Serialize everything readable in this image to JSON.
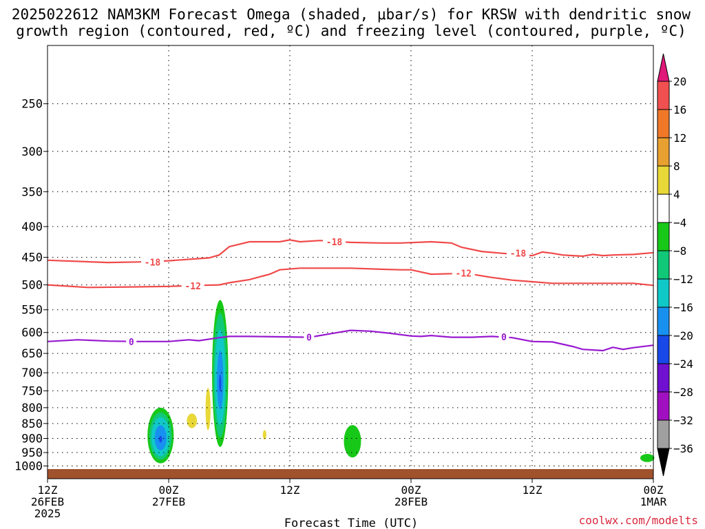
{
  "title_line1": "2025022612 NAM3KM Forecast Omega (shaded, μbar/s) for KRSW with dendritic snow",
  "title_line2": "growth region (contoured, red, ºC) and freezing level (contoured, purple, ºC)",
  "xlabel": "Forecast Time (UTC)",
  "credit": "coolwx.com/modelts",
  "chart_data": {
    "type": "heatmap",
    "x_hours_range": [
      0,
      60
    ],
    "y_axis": {
      "scale": "log",
      "range_hPa": [
        1050,
        200
      ],
      "ticks": [
        250,
        300,
        350,
        400,
        450,
        500,
        550,
        600,
        650,
        700,
        750,
        800,
        850,
        900,
        950,
        1000
      ]
    },
    "x_ticks": [
      {
        "hour": 0,
        "lines": [
          "12Z",
          "26FEB",
          "2025"
        ]
      },
      {
        "hour": 12,
        "lines": [
          "00Z",
          "27FEB"
        ]
      },
      {
        "hour": 24,
        "lines": [
          "12Z"
        ]
      },
      {
        "hour": 36,
        "lines": [
          "00Z",
          "28FEB"
        ]
      },
      {
        "hour": 48,
        "lines": [
          "12Z"
        ]
      },
      {
        "hour": 60,
        "lines": [
          "00Z",
          "1MAR"
        ]
      }
    ],
    "grid": true,
    "surface_color": "#a0522d",
    "colorbar": {
      "labels": [
        "20",
        "16",
        "12",
        "8",
        "4",
        "−4",
        "−8",
        "−12",
        "−16",
        "−20",
        "−24",
        "−28",
        "−32",
        "−36"
      ],
      "bands": [
        {
          "range": [
            16,
            20
          ],
          "color": "#f05050"
        },
        {
          "range": [
            12,
            16
          ],
          "color": "#f07828"
        },
        {
          "range": [
            8,
            12
          ],
          "color": "#e8a030"
        },
        {
          "range": [
            4,
            8
          ],
          "color": "#e8d838"
        },
        {
          "range": [
            -4,
            4
          ],
          "color": "#ffffff"
        },
        {
          "range": [
            -8,
            -4
          ],
          "color": "#18c818"
        },
        {
          "range": [
            -12,
            -8
          ],
          "color": "#10c878"
        },
        {
          "range": [
            -16,
            -12
          ],
          "color": "#10c8c8"
        },
        {
          "range": [
            -20,
            -16
          ],
          "color": "#1890f0"
        },
        {
          "range": [
            -24,
            -20
          ],
          "color": "#1848e8"
        },
        {
          "range": [
            -28,
            -24
          ],
          "color": "#7010d0"
        },
        {
          "range": [
            -32,
            -28
          ],
          "color": "#a010c0"
        },
        {
          "range": [
            -36,
            -32
          ],
          "color": "#a0a0a0"
        }
      ],
      "over_color": "#e01878",
      "under_color": "#000000"
    },
    "contours": [
      {
        "label": "-18",
        "color": "#f04848",
        "points": [
          [
            0,
            455
          ],
          [
            6,
            459
          ],
          [
            9,
            458
          ],
          [
            12,
            456
          ],
          [
            16,
            451
          ],
          [
            17,
            446
          ],
          [
            18,
            432
          ],
          [
            20,
            424
          ],
          [
            23,
            424
          ],
          [
            24,
            421
          ],
          [
            25,
            424
          ],
          [
            27,
            422
          ],
          [
            30,
            425
          ],
          [
            33,
            426
          ],
          [
            35,
            426
          ],
          [
            38,
            424
          ],
          [
            40,
            426
          ],
          [
            41,
            433
          ],
          [
            43,
            440
          ],
          [
            45,
            443
          ],
          [
            48,
            447
          ],
          [
            49,
            441
          ],
          [
            50,
            443
          ],
          [
            51,
            446
          ],
          [
            52,
            447
          ],
          [
            53,
            448
          ],
          [
            54,
            445
          ],
          [
            55,
            447
          ],
          [
            56,
            446
          ],
          [
            58,
            445
          ],
          [
            60,
            442
          ]
        ],
        "labels_at": [
          [
            10.4,
            458
          ],
          [
            28.4,
            424
          ],
          [
            46.6,
            443
          ]
        ]
      },
      {
        "label": "-12",
        "color": "#f04848",
        "points": [
          [
            0,
            500
          ],
          [
            4,
            505
          ],
          [
            8,
            504
          ],
          [
            12,
            503
          ],
          [
            15,
            501
          ],
          [
            17,
            500
          ],
          [
            18,
            496
          ],
          [
            20,
            490
          ],
          [
            22,
            480
          ],
          [
            23,
            472
          ],
          [
            25,
            469
          ],
          [
            27,
            469
          ],
          [
            30,
            469
          ],
          [
            33,
            471
          ],
          [
            35,
            472
          ],
          [
            36,
            472
          ],
          [
            37,
            476
          ],
          [
            38,
            480
          ],
          [
            40,
            479
          ],
          [
            41,
            477
          ],
          [
            42,
            480
          ],
          [
            44,
            486
          ],
          [
            46,
            491
          ],
          [
            48,
            494
          ],
          [
            50,
            497
          ],
          [
            52,
            497
          ],
          [
            54,
            497
          ],
          [
            56,
            497
          ],
          [
            58,
            497
          ],
          [
            60,
            501
          ]
        ],
        "labels_at": [
          [
            14.4,
            502
          ],
          [
            41.2,
            478
          ]
        ]
      },
      {
        "label": "0",
        "color": "#9818d0",
        "points": [
          [
            0,
            621
          ],
          [
            3,
            617
          ],
          [
            6,
            620
          ],
          [
            9,
            621
          ],
          [
            12,
            621
          ],
          [
            14,
            617
          ],
          [
            15,
            619
          ],
          [
            17,
            612
          ],
          [
            18,
            609
          ],
          [
            20,
            609
          ],
          [
            23,
            610
          ],
          [
            26,
            611
          ],
          [
            28,
            603
          ],
          [
            30,
            595
          ],
          [
            32,
            597
          ],
          [
            34,
            602
          ],
          [
            36,
            608
          ],
          [
            37,
            609
          ],
          [
            38,
            607
          ],
          [
            40,
            611
          ],
          [
            42,
            611
          ],
          [
            44,
            609
          ],
          [
            46,
            612
          ],
          [
            48,
            621
          ],
          [
            50,
            622
          ],
          [
            52,
            633
          ],
          [
            53,
            640
          ],
          [
            55,
            643
          ],
          [
            56,
            635
          ],
          [
            57,
            640
          ],
          [
            58,
            636
          ],
          [
            60,
            630
          ]
        ],
        "labels_at": [
          [
            8.3,
            621
          ],
          [
            25.9,
            611
          ],
          [
            45.2,
            610
          ]
        ]
      }
    ],
    "omega_features": [
      {
        "hour": 11.2,
        "p_min": 800,
        "p_max": 990,
        "half_width_h": 1.3,
        "layers": [
          {
            "v": -6,
            "s": 1.0
          },
          {
            "v": -10,
            "s": 0.85
          },
          {
            "v": -14,
            "s": 0.7
          },
          {
            "v": -18,
            "s": 0.45
          },
          {
            "v": -22,
            "s": 0.12
          }
        ]
      },
      {
        "hour": 14.3,
        "p_min": 818,
        "p_max": 865,
        "half_width_h": 0.5,
        "layers": [
          {
            "v": 5,
            "s": 1.0
          }
        ]
      },
      {
        "hour": 15.9,
        "p_min": 742,
        "p_max": 872,
        "half_width_h": 0.25,
        "layers": [
          {
            "v": 5,
            "s": 1.0
          }
        ]
      },
      {
        "hour": 17.1,
        "p_min": 530,
        "p_max": 930,
        "half_width_h": 0.8,
        "layers": [
          {
            "v": -6,
            "s": 1.0
          },
          {
            "v": -10,
            "s": 0.85
          },
          {
            "v": -14,
            "s": 0.65
          },
          {
            "v": -18,
            "s": 0.4
          },
          {
            "v": -22,
            "s": 0.12
          }
        ]
      },
      {
        "hour": 21.5,
        "p_min": 872,
        "p_max": 903,
        "half_width_h": 0.18,
        "layers": [
          {
            "v": 5,
            "s": 1.0
          }
        ]
      },
      {
        "hour": 30.2,
        "p_min": 855,
        "p_max": 968,
        "half_width_h": 0.85,
        "layers": [
          {
            "v": -6,
            "s": 1.0
          }
        ]
      },
      {
        "hour": 59.4,
        "p_min": 955,
        "p_max": 985,
        "half_width_h": 0.7,
        "layers": [
          {
            "v": -6,
            "s": 1.0
          }
        ]
      }
    ]
  }
}
